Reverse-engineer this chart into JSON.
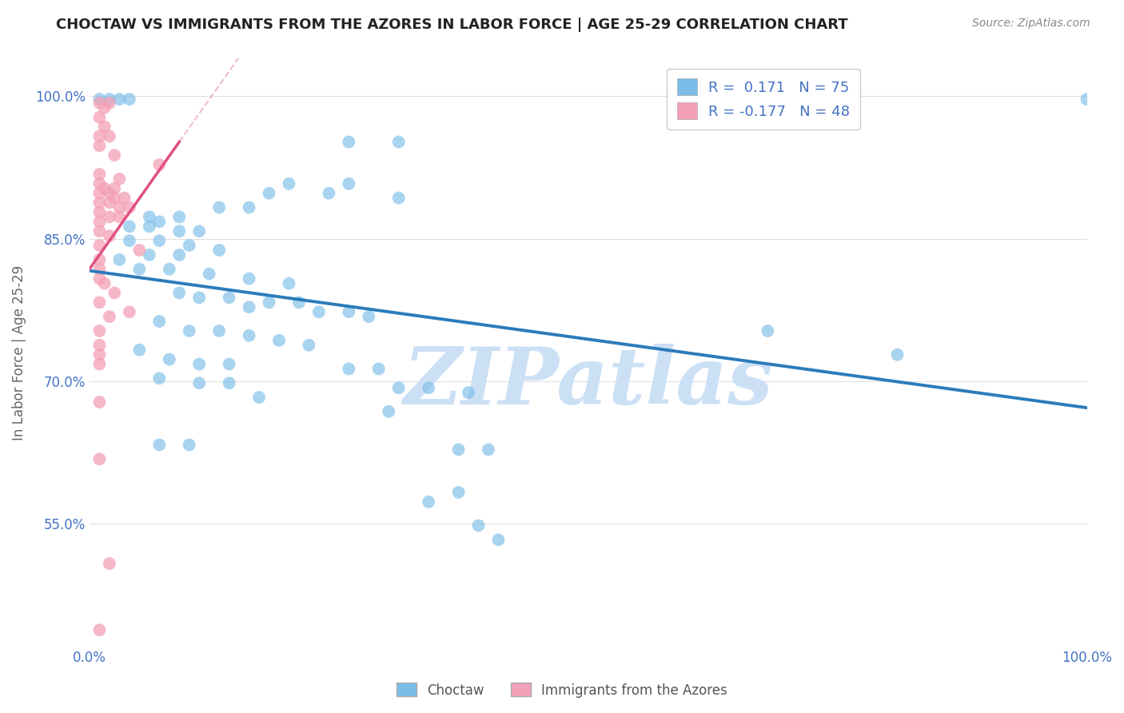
{
  "title": "CHOCTAW VS IMMIGRANTS FROM THE AZORES IN LABOR FORCE | AGE 25-29 CORRELATION CHART",
  "source": "Source: ZipAtlas.com",
  "ylabel": "In Labor Force | Age 25-29",
  "xlim": [
    0.0,
    1.0
  ],
  "ylim": [
    0.42,
    1.04
  ],
  "ytick_positions": [
    0.55,
    0.7,
    0.85,
    1.0
  ],
  "yticklabels": [
    "55.0%",
    "70.0%",
    "85.0%",
    "100.0%"
  ],
  "legend_label1": "Choctaw",
  "legend_label2": "Immigrants from the Azores",
  "R1": 0.171,
  "N1": 75,
  "R2": -0.177,
  "N2": 48,
  "blue_color": "#7bbde8",
  "pink_color": "#f4a0b8",
  "blue_line_color": "#2b7bba",
  "pink_line_color": "#e05080",
  "blue_scatter": [
    [
      0.01,
      0.997
    ],
    [
      0.02,
      0.997
    ],
    [
      0.03,
      0.997
    ],
    [
      0.04,
      0.997
    ],
    [
      0.26,
      0.952
    ],
    [
      0.31,
      0.952
    ],
    [
      0.2,
      0.908
    ],
    [
      0.26,
      0.908
    ],
    [
      0.18,
      0.898
    ],
    [
      0.24,
      0.898
    ],
    [
      0.31,
      0.893
    ],
    [
      0.13,
      0.883
    ],
    [
      0.16,
      0.883
    ],
    [
      0.06,
      0.873
    ],
    [
      0.09,
      0.873
    ],
    [
      0.07,
      0.868
    ],
    [
      0.04,
      0.863
    ],
    [
      0.06,
      0.863
    ],
    [
      0.09,
      0.858
    ],
    [
      0.11,
      0.858
    ],
    [
      0.04,
      0.848
    ],
    [
      0.07,
      0.848
    ],
    [
      0.1,
      0.843
    ],
    [
      0.13,
      0.838
    ],
    [
      0.06,
      0.833
    ],
    [
      0.09,
      0.833
    ],
    [
      0.03,
      0.828
    ],
    [
      0.05,
      0.818
    ],
    [
      0.08,
      0.818
    ],
    [
      0.12,
      0.813
    ],
    [
      0.16,
      0.808
    ],
    [
      0.2,
      0.803
    ],
    [
      0.09,
      0.793
    ],
    [
      0.11,
      0.788
    ],
    [
      0.14,
      0.788
    ],
    [
      0.18,
      0.783
    ],
    [
      0.21,
      0.783
    ],
    [
      0.16,
      0.778
    ],
    [
      0.23,
      0.773
    ],
    [
      0.26,
      0.773
    ],
    [
      0.28,
      0.768
    ],
    [
      0.07,
      0.763
    ],
    [
      0.1,
      0.753
    ],
    [
      0.13,
      0.753
    ],
    [
      0.16,
      0.748
    ],
    [
      0.19,
      0.743
    ],
    [
      0.22,
      0.738
    ],
    [
      0.05,
      0.733
    ],
    [
      0.08,
      0.723
    ],
    [
      0.11,
      0.718
    ],
    [
      0.14,
      0.718
    ],
    [
      0.26,
      0.713
    ],
    [
      0.29,
      0.713
    ],
    [
      0.07,
      0.703
    ],
    [
      0.11,
      0.698
    ],
    [
      0.14,
      0.698
    ],
    [
      0.31,
      0.693
    ],
    [
      0.34,
      0.693
    ],
    [
      0.38,
      0.688
    ],
    [
      0.17,
      0.683
    ],
    [
      0.3,
      0.668
    ],
    [
      0.07,
      0.633
    ],
    [
      0.1,
      0.633
    ],
    [
      0.37,
      0.628
    ],
    [
      0.4,
      0.628
    ],
    [
      0.37,
      0.583
    ],
    [
      0.34,
      0.573
    ],
    [
      0.39,
      0.548
    ],
    [
      0.41,
      0.533
    ],
    [
      0.68,
      0.753
    ],
    [
      0.81,
      0.728
    ],
    [
      1.0,
      0.997
    ]
  ],
  "pink_scatter": [
    [
      0.01,
      0.993
    ],
    [
      0.015,
      0.988
    ],
    [
      0.02,
      0.993
    ],
    [
      0.01,
      0.978
    ],
    [
      0.015,
      0.968
    ],
    [
      0.01,
      0.958
    ],
    [
      0.02,
      0.958
    ],
    [
      0.01,
      0.948
    ],
    [
      0.025,
      0.938
    ],
    [
      0.07,
      0.928
    ],
    [
      0.01,
      0.918
    ],
    [
      0.03,
      0.913
    ],
    [
      0.01,
      0.908
    ],
    [
      0.015,
      0.903
    ],
    [
      0.025,
      0.903
    ],
    [
      0.01,
      0.898
    ],
    [
      0.02,
      0.898
    ],
    [
      0.025,
      0.893
    ],
    [
      0.035,
      0.893
    ],
    [
      0.01,
      0.888
    ],
    [
      0.02,
      0.888
    ],
    [
      0.03,
      0.883
    ],
    [
      0.04,
      0.883
    ],
    [
      0.01,
      0.878
    ],
    [
      0.02,
      0.873
    ],
    [
      0.03,
      0.873
    ],
    [
      0.01,
      0.868
    ],
    [
      0.01,
      0.858
    ],
    [
      0.02,
      0.853
    ],
    [
      0.01,
      0.843
    ],
    [
      0.05,
      0.838
    ],
    [
      0.01,
      0.828
    ],
    [
      0.01,
      0.818
    ],
    [
      0.01,
      0.808
    ],
    [
      0.015,
      0.803
    ],
    [
      0.025,
      0.793
    ],
    [
      0.01,
      0.783
    ],
    [
      0.04,
      0.773
    ],
    [
      0.02,
      0.768
    ],
    [
      0.01,
      0.753
    ],
    [
      0.01,
      0.738
    ],
    [
      0.01,
      0.728
    ],
    [
      0.01,
      0.718
    ],
    [
      0.01,
      0.678
    ],
    [
      0.01,
      0.618
    ],
    [
      0.02,
      0.508
    ],
    [
      0.01,
      0.438
    ]
  ],
  "watermark_text": "ZIPatlas",
  "watermark_color": "#cce0f5",
  "background_color": "#ffffff",
  "grid_color": "#e0e0e0"
}
